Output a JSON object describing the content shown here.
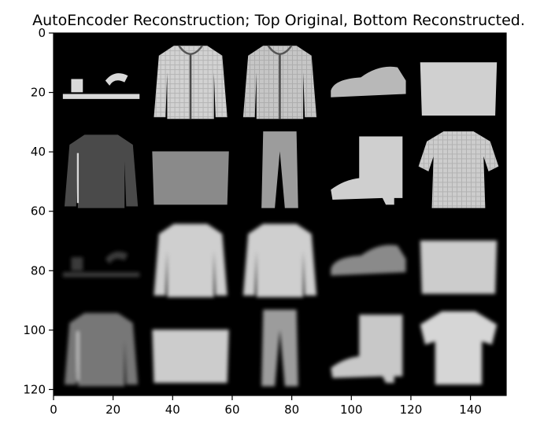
{
  "chart_data": {
    "type": "heatmap",
    "title": "AutoEncoder Reconstruction; Top Original, Bottom Reconstructed.",
    "xlabel": "",
    "ylabel": "",
    "colormap": "gray",
    "image_size": [
      152,
      122
    ],
    "xlim": [
      0,
      152
    ],
    "ylim": [
      122,
      0
    ],
    "x_ticks": [
      0,
      20,
      40,
      60,
      80,
      100,
      120,
      140
    ],
    "y_ticks": [
      0,
      20,
      40,
      60,
      80,
      100,
      120
    ],
    "grid": false,
    "legend": "none",
    "tile_size": 28,
    "rows": [
      {
        "group": "original",
        "items": [
          "sandal",
          "hoodie",
          "jacket",
          "sneaker",
          "bag"
        ]
      },
      {
        "group": "original",
        "items": [
          "shirt",
          "bag",
          "trouser",
          "ankle-boot",
          "dress"
        ]
      },
      {
        "group": "reconstructed",
        "items": [
          "sandal",
          "pullover",
          "pullover",
          "sneaker",
          "bag"
        ]
      },
      {
        "group": "reconstructed",
        "items": [
          "shirt",
          "bag",
          "trouser",
          "ankle-boot",
          "t-shirt"
        ]
      }
    ]
  }
}
